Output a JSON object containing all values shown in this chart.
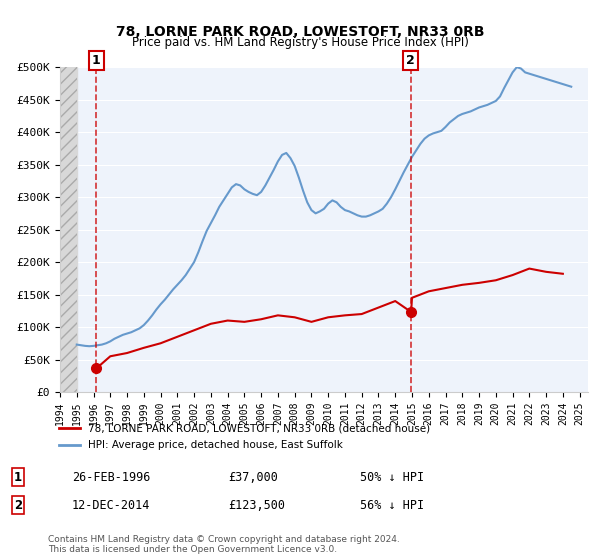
{
  "title": "78, LORNE PARK ROAD, LOWESTOFT, NR33 0RB",
  "subtitle": "Price paid vs. HM Land Registry's House Price Index (HPI)",
  "legend_line1": "78, LORNE PARK ROAD, LOWESTOFT, NR33 0RB (detached house)",
  "legend_line2": "HPI: Average price, detached house, East Suffolk",
  "footnote": "Contains HM Land Registry data © Crown copyright and database right 2024.\nThis data is licensed under the Open Government Licence v3.0.",
  "purchase_dates": [
    "1996-02-26",
    "2014-12-12"
  ],
  "purchase_prices": [
    37000,
    123500
  ],
  "purchase_labels": [
    "1",
    "2"
  ],
  "table_rows": [
    [
      "1",
      "26-FEB-1996",
      "£37,000",
      "50% ↓ HPI"
    ],
    [
      "2",
      "12-DEC-2014",
      "£123,500",
      "56% ↓ HPI"
    ]
  ],
  "line_color_price": "#cc0000",
  "line_color_hpi": "#6699cc",
  "marker_color": "#cc0000",
  "hatch_color": "#cccccc",
  "bg_color": "#ffffff",
  "plot_bg_color": "#eef3fb",
  "hatch_bg_color": "#d8d8d8",
  "ylim": [
    0,
    500000
  ],
  "yticks": [
    0,
    50000,
    100000,
    150000,
    200000,
    250000,
    300000,
    350000,
    400000,
    450000,
    500000
  ],
  "ytick_labels": [
    "£0",
    "£50K",
    "£100K",
    "£150K",
    "£200K",
    "£250K",
    "£300K",
    "£350K",
    "£400K",
    "£450K",
    "£500K"
  ],
  "hpi_years": [
    1995.0,
    1995.25,
    1995.5,
    1995.75,
    1996.0,
    1996.25,
    1996.5,
    1996.75,
    1997.0,
    1997.25,
    1997.5,
    1997.75,
    1998.0,
    1998.25,
    1998.5,
    1998.75,
    1999.0,
    1999.25,
    1999.5,
    1999.75,
    2000.0,
    2000.25,
    2000.5,
    2000.75,
    2001.0,
    2001.25,
    2001.5,
    2001.75,
    2002.0,
    2002.25,
    2002.5,
    2002.75,
    2003.0,
    2003.25,
    2003.5,
    2003.75,
    2004.0,
    2004.25,
    2004.5,
    2004.75,
    2005.0,
    2005.25,
    2005.5,
    2005.75,
    2006.0,
    2006.25,
    2006.5,
    2006.75,
    2007.0,
    2007.25,
    2007.5,
    2007.75,
    2008.0,
    2008.25,
    2008.5,
    2008.75,
    2009.0,
    2009.25,
    2009.5,
    2009.75,
    2010.0,
    2010.25,
    2010.5,
    2010.75,
    2011.0,
    2011.25,
    2011.5,
    2011.75,
    2012.0,
    2012.25,
    2012.5,
    2012.75,
    2013.0,
    2013.25,
    2013.5,
    2013.75,
    2014.0,
    2014.25,
    2014.5,
    2014.75,
    2015.0,
    2015.25,
    2015.5,
    2015.75,
    2016.0,
    2016.25,
    2016.5,
    2016.75,
    2017.0,
    2017.25,
    2017.5,
    2017.75,
    2018.0,
    2018.25,
    2018.5,
    2018.75,
    2019.0,
    2019.25,
    2019.5,
    2019.75,
    2020.0,
    2020.25,
    2020.5,
    2020.75,
    2021.0,
    2021.25,
    2021.5,
    2021.75,
    2022.0,
    2022.25,
    2022.5,
    2022.75,
    2023.0,
    2023.25,
    2023.5,
    2023.75,
    2024.0,
    2024.25,
    2024.5
  ],
  "hpi_values": [
    73000,
    72000,
    71000,
    70500,
    71000,
    72000,
    73000,
    75000,
    78000,
    82000,
    85000,
    88000,
    90000,
    92000,
    95000,
    98000,
    103000,
    110000,
    118000,
    127000,
    135000,
    142000,
    150000,
    158000,
    165000,
    172000,
    180000,
    190000,
    200000,
    215000,
    232000,
    248000,
    260000,
    272000,
    285000,
    295000,
    305000,
    315000,
    320000,
    318000,
    312000,
    308000,
    305000,
    303000,
    308000,
    318000,
    330000,
    342000,
    355000,
    365000,
    368000,
    360000,
    348000,
    330000,
    310000,
    292000,
    280000,
    275000,
    278000,
    282000,
    290000,
    295000,
    292000,
    285000,
    280000,
    278000,
    275000,
    272000,
    270000,
    270000,
    272000,
    275000,
    278000,
    282000,
    290000,
    300000,
    312000,
    325000,
    338000,
    350000,
    362000,
    372000,
    382000,
    390000,
    395000,
    398000,
    400000,
    402000,
    408000,
    415000,
    420000,
    425000,
    428000,
    430000,
    432000,
    435000,
    438000,
    440000,
    442000,
    445000,
    448000,
    455000,
    468000,
    480000,
    492000,
    500000,
    498000,
    492000,
    490000,
    488000,
    486000,
    484000,
    482000,
    480000,
    478000,
    476000,
    474000,
    472000,
    470000
  ],
  "price_years": [
    1996.15,
    1996.2,
    1997.0,
    1998.0,
    1999.0,
    2000.0,
    2001.0,
    2002.0,
    2003.0,
    2004.0,
    2005.0,
    2006.0,
    2007.0,
    2008.0,
    2009.0,
    2010.0,
    2011.0,
    2012.0,
    2013.0,
    2014.0,
    2014.93,
    2014.95,
    2015.0,
    2016.0,
    2017.0,
    2018.0,
    2019.0,
    2020.0,
    2021.0,
    2022.0,
    2023.0,
    2024.0
  ],
  "price_values": [
    37000,
    37000,
    55000,
    60000,
    68000,
    75000,
    85000,
    95000,
    105000,
    110000,
    108000,
    112000,
    118000,
    115000,
    108000,
    115000,
    118000,
    120000,
    130000,
    140000,
    123500,
    123500,
    145000,
    155000,
    160000,
    165000,
    168000,
    172000,
    180000,
    190000,
    185000,
    182000
  ]
}
